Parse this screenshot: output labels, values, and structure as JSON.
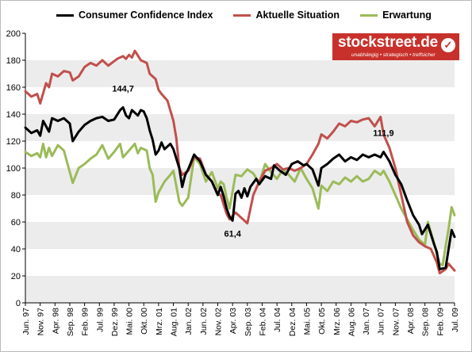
{
  "chart_data": {
    "type": "line",
    "ylim": [
      0,
      200
    ],
    "yticks": [
      0,
      20,
      40,
      60,
      80,
      100,
      120,
      140,
      160,
      180,
      200
    ],
    "xlim": [
      "1997-06",
      "2009-07"
    ],
    "x_tick_labels": [
      "Jun. 97",
      "Nov. 97",
      "Apr. 98",
      "Sep. 98",
      "Feb. 99",
      "Jul. 99",
      "Dez. 99",
      "Mai. 00",
      "Okt. 00",
      "Mrz. 01",
      "Aug. 01",
      "Jan. 02",
      "Jun. 02",
      "Nov. 02",
      "Apr. 03",
      "Sep. 03",
      "Feb. 04",
      "Jul. 04",
      "Dez. 04",
      "Mai. 05",
      "Okt. 05",
      "Mrz. 06",
      "Aug. 06",
      "Jan. 07",
      "Jun. 07",
      "Nov. 07",
      "Apr. 08",
      "Sep. 08",
      "Feb. 09",
      "Jul. 09"
    ],
    "grid": {
      "horizontal_bands": true,
      "vertical_grid": false
    },
    "legend_position": "top",
    "series": [
      {
        "name": "Consumer Confidence Index",
        "color": "#000000",
        "points": [
          [
            "1997-06",
            130
          ],
          [
            "1997-08",
            126
          ],
          [
            "1997-10",
            128
          ],
          [
            "1997-11",
            124
          ],
          [
            "1997-12",
            135
          ],
          [
            "1998-02",
            127
          ],
          [
            "1998-03",
            137
          ],
          [
            "1998-05",
            135
          ],
          [
            "1998-07",
            137
          ],
          [
            "1998-09",
            133
          ],
          [
            "1998-10",
            120
          ],
          [
            "1998-12",
            127
          ],
          [
            "1999-02",
            132
          ],
          [
            "1999-04",
            135
          ],
          [
            "1999-06",
            137
          ],
          [
            "1999-08",
            138
          ],
          [
            "1999-10",
            135
          ],
          [
            "1999-12",
            136
          ],
          [
            "2000-02",
            143
          ],
          [
            "2000-03",
            145
          ],
          [
            "2000-04",
            139
          ],
          [
            "2000-05",
            137
          ],
          [
            "2000-06",
            143
          ],
          [
            "2000-08",
            139
          ],
          [
            "2000-09",
            143
          ],
          [
            "2000-10",
            142
          ],
          [
            "2000-11",
            137
          ],
          [
            "2000-12",
            128
          ],
          [
            "2001-01",
            121
          ],
          [
            "2001-02",
            110
          ],
          [
            "2001-03",
            113
          ],
          [
            "2001-04",
            119
          ],
          [
            "2001-05",
            114
          ],
          [
            "2001-07",
            118
          ],
          [
            "2001-08",
            114
          ],
          [
            "2001-10",
            100
          ],
          [
            "2001-11",
            86
          ],
          [
            "2001-12",
            95
          ],
          [
            "2002-01",
            99
          ],
          [
            "2002-03",
            110
          ],
          [
            "2002-05",
            105
          ],
          [
            "2002-07",
            95
          ],
          [
            "2002-09",
            90
          ],
          [
            "2002-11",
            80
          ],
          [
            "2002-12",
            86
          ],
          [
            "2003-01",
            79
          ],
          [
            "2003-02",
            70
          ],
          [
            "2003-03",
            64
          ],
          [
            "2003-04",
            61
          ],
          [
            "2003-05",
            81
          ],
          [
            "2003-06",
            83
          ],
          [
            "2003-07",
            78
          ],
          [
            "2003-08",
            85
          ],
          [
            "2003-09",
            79
          ],
          [
            "2003-10",
            86
          ],
          [
            "2003-12",
            92
          ],
          [
            "2004-01",
            88
          ],
          [
            "2004-03",
            94
          ],
          [
            "2004-05",
            92
          ],
          [
            "2004-06",
            102
          ],
          [
            "2004-08",
            98
          ],
          [
            "2004-10",
            95
          ],
          [
            "2004-12",
            103
          ],
          [
            "2005-02",
            105
          ],
          [
            "2005-04",
            102
          ],
          [
            "2005-05",
            103
          ],
          [
            "2005-07",
            99
          ],
          [
            "2005-09",
            87
          ],
          [
            "2005-10",
            100
          ],
          [
            "2005-12",
            103
          ],
          [
            "2006-02",
            107
          ],
          [
            "2006-04",
            110
          ],
          [
            "2006-06",
            105
          ],
          [
            "2006-08",
            108
          ],
          [
            "2006-10",
            106
          ],
          [
            "2006-12",
            110
          ],
          [
            "2007-02",
            108
          ],
          [
            "2007-04",
            110
          ],
          [
            "2007-06",
            108
          ],
          [
            "2007-07",
            112
          ],
          [
            "2007-09",
            105
          ],
          [
            "2007-11",
            95
          ],
          [
            "2008-01",
            88
          ],
          [
            "2008-03",
            76
          ],
          [
            "2008-05",
            65
          ],
          [
            "2008-07",
            58
          ],
          [
            "2008-08",
            51
          ],
          [
            "2008-10",
            58
          ],
          [
            "2008-12",
            44
          ],
          [
            "2009-01",
            38
          ],
          [
            "2009-02",
            25
          ],
          [
            "2009-04",
            26
          ],
          [
            "2009-05",
            40
          ],
          [
            "2009-06",
            54
          ],
          [
            "2009-07",
            49
          ]
        ]
      },
      {
        "name": "Aktuelle Situation",
        "color": "#c0504d",
        "points": [
          [
            "1997-06",
            157
          ],
          [
            "1997-08",
            153
          ],
          [
            "1997-10",
            155
          ],
          [
            "1997-11",
            148
          ],
          [
            "1998-01",
            163
          ],
          [
            "1998-02",
            160
          ],
          [
            "1998-03",
            170
          ],
          [
            "1998-05",
            168
          ],
          [
            "1998-07",
            172
          ],
          [
            "1998-09",
            171
          ],
          [
            "1998-10",
            165
          ],
          [
            "1998-12",
            168
          ],
          [
            "1999-02",
            175
          ],
          [
            "1999-04",
            178
          ],
          [
            "1999-06",
            176
          ],
          [
            "1999-08",
            180
          ],
          [
            "1999-10",
            176
          ],
          [
            "2000-01",
            181
          ],
          [
            "2000-03",
            183
          ],
          [
            "2000-04",
            181
          ],
          [
            "2000-05",
            184
          ],
          [
            "2000-06",
            182
          ],
          [
            "2000-07",
            187
          ],
          [
            "2000-09",
            180
          ],
          [
            "2000-11",
            178
          ],
          [
            "2000-12",
            170
          ],
          [
            "2001-01",
            168
          ],
          [
            "2001-02",
            166
          ],
          [
            "2001-03",
            158
          ],
          [
            "2001-04",
            155
          ],
          [
            "2001-06",
            150
          ],
          [
            "2001-08",
            135
          ],
          [
            "2001-09",
            122
          ],
          [
            "2001-10",
            100
          ],
          [
            "2001-11",
            95
          ],
          [
            "2002-01",
            98
          ],
          [
            "2002-03",
            108
          ],
          [
            "2002-05",
            107
          ],
          [
            "2002-07",
            95
          ],
          [
            "2002-09",
            90
          ],
          [
            "2002-11",
            81
          ],
          [
            "2002-12",
            80
          ],
          [
            "2003-02",
            66
          ],
          [
            "2003-03",
            62
          ],
          [
            "2003-05",
            67
          ],
          [
            "2003-07",
            63
          ],
          [
            "2003-09",
            59
          ],
          [
            "2003-11",
            80
          ],
          [
            "2004-01",
            90
          ],
          [
            "2004-03",
            98
          ],
          [
            "2004-05",
            100
          ],
          [
            "2004-07",
            103
          ],
          [
            "2004-09",
            99
          ],
          [
            "2004-11",
            100
          ],
          [
            "2005-01",
            98
          ],
          [
            "2005-03",
            100
          ],
          [
            "2005-05",
            103
          ],
          [
            "2005-07",
            110
          ],
          [
            "2005-09",
            118
          ],
          [
            "2005-10",
            125
          ],
          [
            "2005-12",
            122
          ],
          [
            "2006-02",
            127
          ],
          [
            "2006-04",
            133
          ],
          [
            "2006-06",
            131
          ],
          [
            "2006-08",
            135
          ],
          [
            "2006-10",
            134
          ],
          [
            "2006-12",
            136
          ],
          [
            "2007-02",
            137
          ],
          [
            "2007-04",
            131
          ],
          [
            "2007-06",
            138
          ],
          [
            "2007-07",
            125
          ],
          [
            "2007-09",
            115
          ],
          [
            "2007-11",
            100
          ],
          [
            "2008-01",
            80
          ],
          [
            "2008-03",
            60
          ],
          [
            "2008-05",
            50
          ],
          [
            "2008-07",
            45
          ],
          [
            "2008-09",
            42
          ],
          [
            "2008-11",
            40
          ],
          [
            "2009-01",
            30
          ],
          [
            "2009-02",
            22
          ],
          [
            "2009-04",
            25
          ],
          [
            "2009-05",
            29
          ],
          [
            "2009-07",
            24
          ]
        ]
      },
      {
        "name": "Erwartung",
        "color": "#9bbb59",
        "points": [
          [
            "1997-06",
            112
          ],
          [
            "1997-08",
            109
          ],
          [
            "1997-10",
            111
          ],
          [
            "1997-11",
            108
          ],
          [
            "1997-12",
            118
          ],
          [
            "1998-01",
            108
          ],
          [
            "1998-02",
            115
          ],
          [
            "1998-03",
            109
          ],
          [
            "1998-05",
            117
          ],
          [
            "1998-07",
            113
          ],
          [
            "1998-09",
            97
          ],
          [
            "1998-10",
            89
          ],
          [
            "1998-12",
            100
          ],
          [
            "1999-02",
            103
          ],
          [
            "1999-04",
            107
          ],
          [
            "1999-06",
            110
          ],
          [
            "1999-08",
            117
          ],
          [
            "1999-10",
            107
          ],
          [
            "1999-12",
            112
          ],
          [
            "2000-02",
            118
          ],
          [
            "2000-03",
            108
          ],
          [
            "2000-05",
            113
          ],
          [
            "2000-07",
            118
          ],
          [
            "2000-08",
            111
          ],
          [
            "2000-09",
            115
          ],
          [
            "2000-11",
            113
          ],
          [
            "2000-12",
            100
          ],
          [
            "2001-01",
            95
          ],
          [
            "2001-02",
            75
          ],
          [
            "2001-03",
            82
          ],
          [
            "2001-05",
            90
          ],
          [
            "2001-07",
            95
          ],
          [
            "2001-08",
            98
          ],
          [
            "2001-10",
            75
          ],
          [
            "2001-11",
            72
          ],
          [
            "2002-01",
            78
          ],
          [
            "2002-03",
            108
          ],
          [
            "2002-05",
            103
          ],
          [
            "2002-07",
            90
          ],
          [
            "2002-09",
            97
          ],
          [
            "2002-11",
            85
          ],
          [
            "2002-12",
            90
          ],
          [
            "2003-01",
            88
          ],
          [
            "2003-02",
            78
          ],
          [
            "2003-03",
            70
          ],
          [
            "2003-05",
            95
          ],
          [
            "2003-07",
            94
          ],
          [
            "2003-09",
            99
          ],
          [
            "2003-11",
            96
          ],
          [
            "2004-01",
            89
          ],
          [
            "2004-03",
            103
          ],
          [
            "2004-05",
            97
          ],
          [
            "2004-07",
            92
          ],
          [
            "2004-09",
            99
          ],
          [
            "2004-11",
            95
          ],
          [
            "2005-01",
            90
          ],
          [
            "2005-03",
            100
          ],
          [
            "2005-05",
            92
          ],
          [
            "2005-07",
            85
          ],
          [
            "2005-09",
            70
          ],
          [
            "2005-10",
            87
          ],
          [
            "2005-12",
            83
          ],
          [
            "2006-02",
            90
          ],
          [
            "2006-04",
            88
          ],
          [
            "2006-06",
            93
          ],
          [
            "2006-08",
            90
          ],
          [
            "2006-10",
            94
          ],
          [
            "2006-12",
            90
          ],
          [
            "2007-02",
            92
          ],
          [
            "2007-04",
            98
          ],
          [
            "2007-06",
            95
          ],
          [
            "2007-07",
            98
          ],
          [
            "2007-09",
            90
          ],
          [
            "2007-11",
            80
          ],
          [
            "2008-01",
            70
          ],
          [
            "2008-03",
            62
          ],
          [
            "2008-05",
            54
          ],
          [
            "2008-07",
            47
          ],
          [
            "2008-09",
            43
          ],
          [
            "2008-10",
            60
          ],
          [
            "2008-12",
            45
          ],
          [
            "2009-01",
            36
          ],
          [
            "2009-02",
            29
          ],
          [
            "2009-03",
            28
          ],
          [
            "2009-04",
            42
          ],
          [
            "2009-05",
            55
          ],
          [
            "2009-06",
            71
          ],
          [
            "2009-07",
            65
          ]
        ]
      }
    ],
    "annotations": [
      {
        "text": "144,7",
        "x": "2000-03",
        "y": 145
      },
      {
        "text": "61,4",
        "x": "2003-04",
        "y": 61
      },
      {
        "text": "111,9",
        "x": "2007-07",
        "y": 112
      }
    ]
  },
  "logo": {
    "name": "stockstreet.de",
    "tagline": "unabhängig • strategisch • treffsicher",
    "badge_glyph": "✓",
    "brand_color": "#c8312b"
  }
}
